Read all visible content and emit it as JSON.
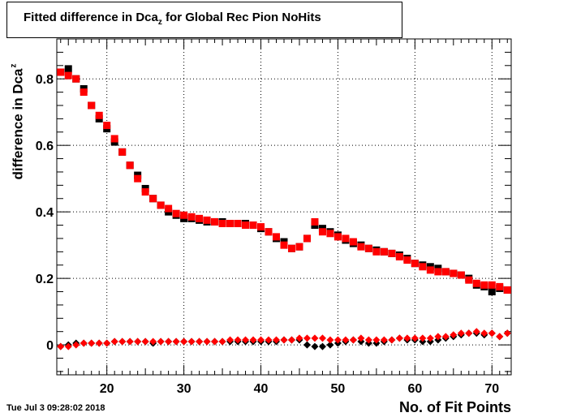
{
  "chart_data": {
    "type": "scatter",
    "title_main": "Fitted difference in Dca",
    "title_sub": "z",
    "title_rest": " for Global Rec Pion NoHits",
    "ylabel_main": "difference in Dca",
    "ylabel_sub": "z",
    "xlabel": "No. of Fit Points",
    "timestamp": "Tue Jul  3 09:28:02 2018",
    "xlim": [
      13.5,
      72.5
    ],
    "ylim": [
      -0.09,
      0.92
    ],
    "xticks": [
      20,
      30,
      40,
      50,
      60,
      70
    ],
    "yticks": [
      0,
      0.2,
      0.4,
      0.6,
      0.8
    ],
    "ytick_labels": [
      "0",
      "0.2",
      "0.4",
      "0.6",
      "0.8"
    ],
    "grid": true,
    "series": [
      {
        "marker": "square",
        "color": "#000000",
        "x": [
          14,
          15,
          16,
          17,
          18,
          19,
          20,
          21,
          22,
          23,
          24,
          25,
          26,
          27,
          28,
          29,
          30,
          31,
          32,
          33,
          34,
          35,
          36,
          37,
          38,
          39,
          40,
          41,
          42,
          43,
          44,
          45,
          46,
          47,
          48,
          49,
          50,
          51,
          52,
          53,
          54,
          55,
          56,
          57,
          58,
          59,
          60,
          61,
          62,
          63,
          64,
          65,
          66,
          67,
          68,
          69,
          70,
          71,
          72
        ],
        "y": [
          0.82,
          0.83,
          0.8,
          0.77,
          0.72,
          0.68,
          0.65,
          0.61,
          0.58,
          0.54,
          0.51,
          0.47,
          0.44,
          0.42,
          0.4,
          0.39,
          0.38,
          0.38,
          0.375,
          0.37,
          0.37,
          0.37,
          0.365,
          0.365,
          0.365,
          0.36,
          0.35,
          0.34,
          0.32,
          0.31,
          0.29,
          0.295,
          0.32,
          0.36,
          0.35,
          0.34,
          0.33,
          0.315,
          0.305,
          0.3,
          0.29,
          0.285,
          0.28,
          0.275,
          0.27,
          0.26,
          0.245,
          0.24,
          0.235,
          0.23,
          0.22,
          0.215,
          0.21,
          0.2,
          0.18,
          0.175,
          0.16,
          0.17,
          0.165
        ]
      },
      {
        "marker": "square",
        "color": "#ff0000",
        "x": [
          14,
          15,
          16,
          17,
          18,
          19,
          20,
          21,
          22,
          23,
          24,
          25,
          26,
          27,
          28,
          29,
          30,
          31,
          32,
          33,
          34,
          35,
          36,
          37,
          38,
          39,
          40,
          41,
          42,
          43,
          44,
          45,
          46,
          47,
          48,
          49,
          50,
          51,
          52,
          53,
          54,
          55,
          56,
          57,
          58,
          59,
          60,
          61,
          62,
          63,
          64,
          65,
          66,
          67,
          68,
          69,
          70,
          71,
          72
        ],
        "y": [
          0.82,
          0.81,
          0.8,
          0.76,
          0.72,
          0.69,
          0.66,
          0.62,
          0.58,
          0.54,
          0.5,
          0.46,
          0.44,
          0.42,
          0.41,
          0.395,
          0.39,
          0.385,
          0.38,
          0.375,
          0.37,
          0.365,
          0.365,
          0.365,
          0.36,
          0.36,
          0.355,
          0.34,
          0.325,
          0.3,
          0.29,
          0.295,
          0.32,
          0.37,
          0.34,
          0.335,
          0.325,
          0.32,
          0.31,
          0.295,
          0.29,
          0.28,
          0.28,
          0.275,
          0.265,
          0.255,
          0.245,
          0.235,
          0.225,
          0.22,
          0.22,
          0.215,
          0.21,
          0.195,
          0.185,
          0.18,
          0.18,
          0.175,
          0.165
        ]
      },
      {
        "marker": "diamond",
        "color": "#000000",
        "x": [
          14,
          15,
          16,
          17,
          18,
          19,
          20,
          21,
          22,
          23,
          24,
          25,
          26,
          27,
          28,
          29,
          30,
          31,
          32,
          33,
          34,
          35,
          36,
          37,
          38,
          39,
          40,
          41,
          42,
          43,
          44,
          45,
          46,
          47,
          48,
          49,
          50,
          51,
          52,
          53,
          54,
          55,
          56,
          57,
          58,
          59,
          60,
          61,
          62,
          63,
          64,
          65,
          66,
          67,
          68,
          69,
          70,
          71,
          72
        ],
        "y": [
          -0.005,
          0.0,
          0.005,
          0.005,
          0.005,
          0.005,
          0.005,
          0.01,
          0.01,
          0.01,
          0.01,
          0.01,
          0.005,
          0.01,
          0.01,
          0.01,
          0.01,
          0.01,
          0.01,
          0.01,
          0.01,
          0.01,
          0.01,
          0.01,
          0.01,
          0.01,
          0.01,
          0.01,
          0.01,
          0.015,
          0.015,
          0.015,
          0.0,
          -0.005,
          -0.005,
          0.0,
          0.005,
          0.01,
          0.015,
          0.01,
          0.005,
          0.005,
          0.01,
          0.015,
          0.02,
          0.015,
          0.015,
          0.01,
          0.01,
          0.015,
          0.02,
          0.025,
          0.03,
          0.035,
          0.035,
          0.03,
          0.035,
          0.025,
          0.035
        ]
      },
      {
        "marker": "diamond",
        "color": "#ff0000",
        "x": [
          14,
          15,
          16,
          17,
          18,
          19,
          20,
          21,
          22,
          23,
          24,
          25,
          26,
          27,
          28,
          29,
          30,
          31,
          32,
          33,
          34,
          35,
          36,
          37,
          38,
          39,
          40,
          41,
          42,
          43,
          44,
          45,
          46,
          47,
          48,
          49,
          50,
          51,
          52,
          53,
          54,
          55,
          56,
          57,
          58,
          59,
          60,
          61,
          62,
          63,
          64,
          65,
          66,
          67,
          68,
          69,
          70,
          71,
          72
        ],
        "y": [
          -0.005,
          -0.005,
          0.0,
          0.005,
          0.005,
          0.005,
          0.005,
          0.01,
          0.01,
          0.01,
          0.01,
          0.01,
          0.01,
          0.01,
          0.01,
          0.01,
          0.01,
          0.01,
          0.01,
          0.01,
          0.01,
          0.01,
          0.015,
          0.015,
          0.015,
          0.015,
          0.015,
          0.015,
          0.015,
          0.015,
          0.015,
          0.02,
          0.02,
          0.02,
          0.02,
          0.015,
          0.015,
          0.015,
          0.015,
          0.02,
          0.015,
          0.015,
          0.015,
          0.015,
          0.02,
          0.02,
          0.02,
          0.02,
          0.02,
          0.025,
          0.025,
          0.03,
          0.035,
          0.035,
          0.04,
          0.035,
          0.035,
          0.025,
          0.035
        ]
      }
    ]
  }
}
